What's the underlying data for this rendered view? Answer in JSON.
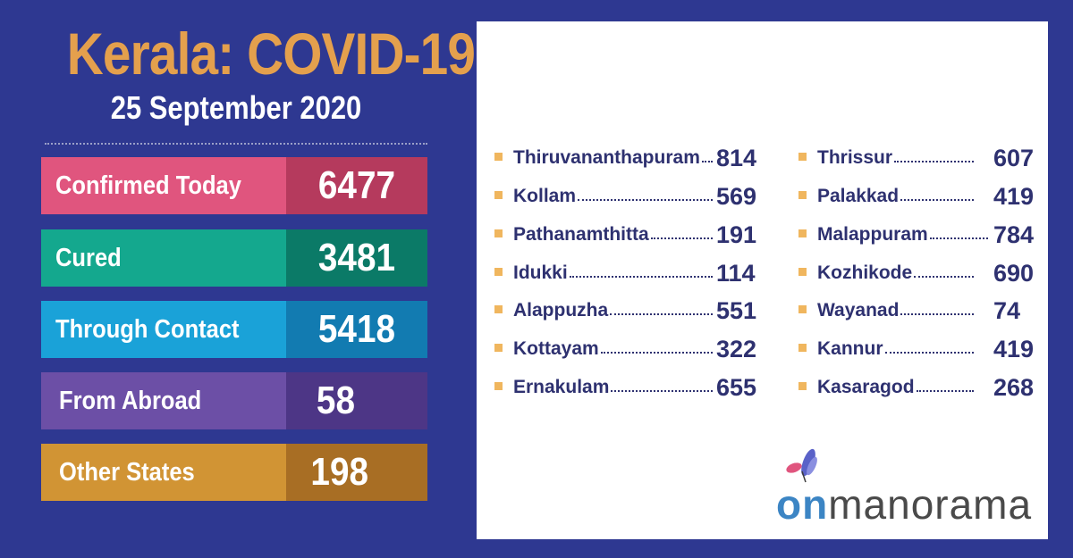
{
  "header": {
    "title": "Kerala: COVID-19",
    "date": "25 September 2020"
  },
  "stats": [
    {
      "label": "Confirmed Today",
      "value": "6477",
      "label_color": "#e0557e",
      "value_color": "#b53a5d"
    },
    {
      "label": "Cured",
      "value": "3481",
      "label_color": "#14a88e",
      "value_color": "#0b7a67"
    },
    {
      "label": "Through Contact",
      "value": "5418",
      "label_color": "#1aa2d8",
      "value_color": "#127bb1"
    },
    {
      "label": "From Abroad",
      "value": "58",
      "label_color": "#6c4fa6",
      "value_color": "#4d3686"
    },
    {
      "label": "Other States",
      "value": "198",
      "label_color": "#d19434",
      "value_color": "#a86e24"
    }
  ],
  "districts_left": [
    {
      "name": "Thiruvananthapuram",
      "value": "814"
    },
    {
      "name": "Kollam",
      "value": "569"
    },
    {
      "name": "Pathanamthitta",
      "value": "191"
    },
    {
      "name": "Idukki",
      "value": "114"
    },
    {
      "name": "Alappuzha",
      "value": "551"
    },
    {
      "name": "Kottayam",
      "value": "322"
    },
    {
      "name": "Ernakulam",
      "value": "655"
    }
  ],
  "districts_right": [
    {
      "name": "Thrissur",
      "value": "607"
    },
    {
      "name": "Palakkad",
      "value": "419"
    },
    {
      "name": "Malappuram",
      "value": "784"
    },
    {
      "name": "Kozhikode",
      "value": "690"
    },
    {
      "name": "Wayanad",
      "value": "74"
    },
    {
      "name": "Kannur",
      "value": "419"
    },
    {
      "name": "Kasaragod",
      "value": "268"
    }
  ],
  "logo": {
    "prefix": "on",
    "rest": "manorama",
    "icon": "butterfly-icon"
  }
}
